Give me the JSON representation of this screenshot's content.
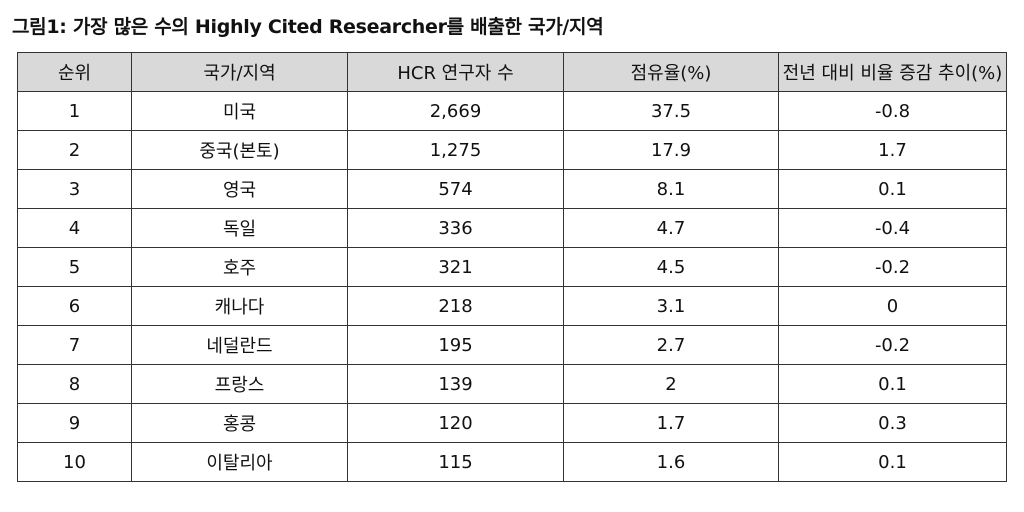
{
  "title": "그림1: 가장 많은 수의 Highly Cited Researcher를 배출한 국가/지역",
  "table": {
    "headers": [
      "순위",
      "국가/지역",
      "HCR 연구자 수",
      "점유율(%)",
      "전년 대비 비율 증감 추이(%)"
    ],
    "rows": [
      [
        "1",
        "미국",
        "2,669",
        "37.5",
        "-0.8"
      ],
      [
        "2",
        "중국(본토)",
        "1,275",
        "17.9",
        "1.7"
      ],
      [
        "3",
        "영국",
        "574",
        "8.1",
        "0.1"
      ],
      [
        "4",
        "독일",
        "336",
        "4.7",
        "-0.4"
      ],
      [
        "5",
        "호주",
        "321",
        "4.5",
        "-0.2"
      ],
      [
        "6",
        "캐나다",
        "218",
        "3.1",
        "0"
      ],
      [
        "7",
        "네덜란드",
        "195",
        "2.7",
        "-0.2"
      ],
      [
        "8",
        "프랑스",
        "139",
        "2",
        "0.1"
      ],
      [
        "9",
        "홍콩",
        "120",
        "1.7",
        "0.3"
      ],
      [
        "10",
        "이탈리아",
        "115",
        "1.6",
        "0.1"
      ]
    ]
  }
}
